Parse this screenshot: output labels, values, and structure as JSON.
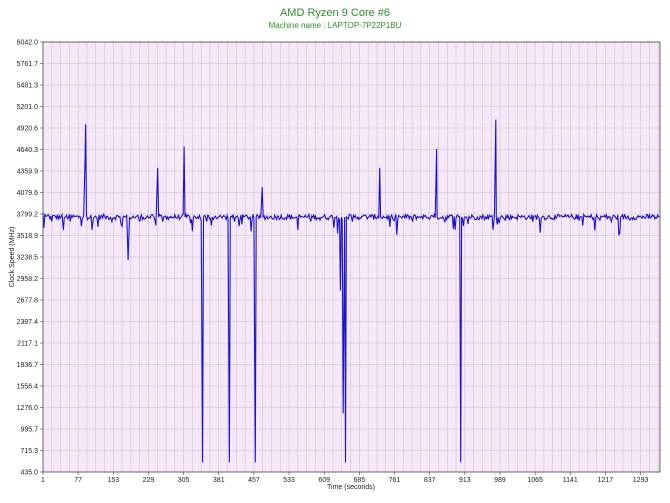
{
  "chart_data": {
    "type": "line",
    "title": "AMD Ryzen 9 Core #6",
    "subtitle": "Machine name : LAPTOP-7P22P1BU",
    "xlabel": "Time (seconds)",
    "ylabel": "Clock Speed (MHz)",
    "xlim": [
      1,
      1335
    ],
    "ylim": [
      435.0,
      6042.0
    ],
    "x_ticks": [
      "1",
      "77",
      "153",
      "229",
      "305",
      "381",
      "457",
      "533",
      "609",
      "685",
      "761",
      "837",
      "913",
      "989",
      "1065",
      "1141",
      "1217",
      "1293"
    ],
    "y_ticks": [
      "6042.0",
      "5761.7",
      "5481.3",
      "5201.0",
      "4920.6",
      "4640.3",
      "4359.9",
      "4079.6",
      "3799.2",
      "3518.9",
      "3238.5",
      "2958.2",
      "2677.8",
      "2397.4",
      "2117.1",
      "1836.7",
      "1556.4",
      "1276.0",
      "995.7",
      "715.3",
      "435.0"
    ],
    "grid": true,
    "colors": {
      "plot_background": "#f7e8f9",
      "grid": "#c8c8c8",
      "line": "#1c14c0",
      "title": "#2e8b2e"
    },
    "series": [
      {
        "baseline": 3760,
        "points": [
          [
            1,
            3820
          ],
          [
            3,
            3620
          ],
          [
            5,
            3800
          ],
          [
            12,
            3790
          ],
          [
            20,
            3700
          ],
          [
            26,
            3780
          ],
          [
            40,
            3760
          ],
          [
            45,
            3590
          ],
          [
            50,
            3760
          ],
          [
            60,
            3700
          ],
          [
            80,
            3770
          ],
          [
            89,
            3780
          ],
          [
            92,
            4540
          ],
          [
            93,
            4970
          ],
          [
            95,
            3780
          ],
          [
            110,
            3740
          ],
          [
            120,
            3630
          ],
          [
            135,
            3760
          ],
          [
            150,
            3700
          ],
          [
            165,
            3760
          ],
          [
            170,
            3660
          ],
          [
            180,
            3760
          ],
          [
            185,
            3200
          ],
          [
            188,
            3760
          ],
          [
            210,
            3700
          ],
          [
            225,
            3760
          ],
          [
            240,
            3770
          ],
          [
            245,
            3650
          ],
          [
            248,
            4200
          ],
          [
            249,
            4400
          ],
          [
            251,
            3760
          ],
          [
            260,
            3700
          ],
          [
            270,
            3760
          ],
          [
            300,
            3760
          ],
          [
            306,
            4680
          ],
          [
            308,
            3760
          ],
          [
            320,
            3680
          ],
          [
            335,
            3760
          ],
          [
            343,
            3720
          ],
          [
            345,
            1700
          ],
          [
            346,
            560
          ],
          [
            348,
            3760
          ],
          [
            355,
            3700
          ],
          [
            365,
            3650
          ],
          [
            372,
            3760
          ],
          [
            395,
            3760
          ],
          [
            403,
            1700
          ],
          [
            404,
            560
          ],
          [
            406,
            3760
          ],
          [
            415,
            3700
          ],
          [
            425,
            3640
          ],
          [
            435,
            3760
          ],
          [
            459,
            1700
          ],
          [
            460,
            560
          ],
          [
            462,
            3760
          ],
          [
            468,
            3740
          ],
          [
            475,
            4150
          ],
          [
            477,
            3760
          ],
          [
            490,
            3750
          ],
          [
            510,
            3770
          ],
          [
            540,
            3740
          ],
          [
            560,
            3770
          ],
          [
            580,
            3700
          ],
          [
            600,
            3720
          ],
          [
            620,
            3760
          ],
          [
            640,
            3740
          ],
          [
            644,
            2800
          ],
          [
            646,
            3760
          ],
          [
            650,
            1200
          ],
          [
            653,
            3760
          ],
          [
            655,
            560
          ],
          [
            657,
            3760
          ],
          [
            670,
            3700
          ],
          [
            690,
            3770
          ],
          [
            710,
            3760
          ],
          [
            725,
            3770
          ],
          [
            729,
            4400
          ],
          [
            731,
            3760
          ],
          [
            760,
            3710
          ],
          [
            775,
            3760
          ],
          [
            800,
            3700
          ],
          [
            820,
            3770
          ],
          [
            845,
            3760
          ],
          [
            852,
            4650
          ],
          [
            853,
            3760
          ],
          [
            870,
            3700
          ],
          [
            890,
            3770
          ],
          [
            900,
            3760
          ],
          [
            904,
            560
          ],
          [
            906,
            3760
          ],
          [
            920,
            3670
          ],
          [
            940,
            3760
          ],
          [
            960,
            3740
          ],
          [
            977,
            3760
          ],
          [
            980,
            5030
          ],
          [
            981,
            3760
          ],
          [
            1000,
            3720
          ],
          [
            1030,
            3770
          ],
          [
            1050,
            3760
          ],
          [
            1060,
            3700
          ],
          [
            1080,
            3760
          ],
          [
            1110,
            3740
          ],
          [
            1140,
            3760
          ],
          [
            1160,
            3710
          ],
          [
            1180,
            3760
          ],
          [
            1205,
            3720
          ],
          [
            1215,
            3780
          ],
          [
            1230,
            3700
          ],
          [
            1250,
            3760
          ],
          [
            1270,
            3720
          ],
          [
            1290,
            3760
          ],
          [
            1310,
            3740
          ],
          [
            1320,
            3770
          ],
          [
            1335,
            3760
          ]
        ]
      }
    ]
  }
}
